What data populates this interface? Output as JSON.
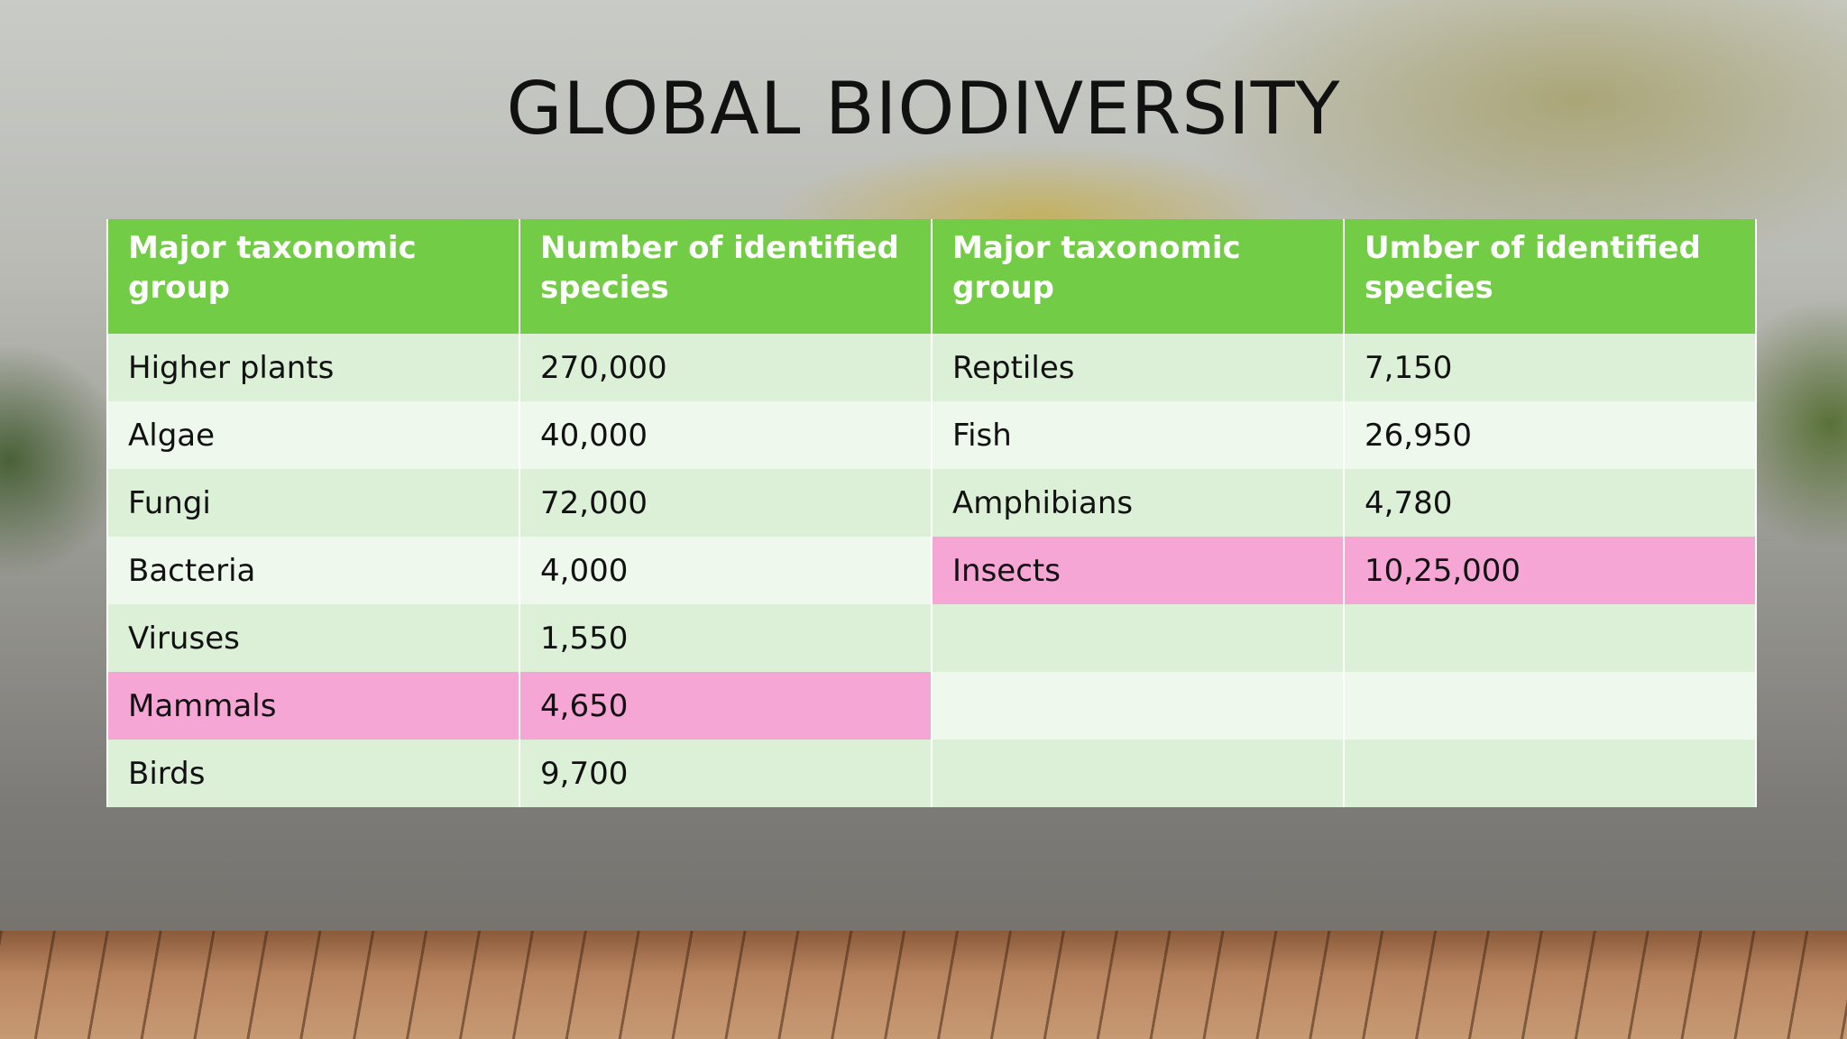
{
  "title": "GLOBAL BIODIVERSITY",
  "table": {
    "header": [
      "Major taxonomic group",
      "Number of identified species",
      "Major taxonomic group",
      "Umber of identified species"
    ],
    "rows": [
      [
        "Higher plants",
        "270,000",
        "Reptiles",
        "7,150"
      ],
      [
        "Algae",
        "40,000",
        "Fish",
        "26,950"
      ],
      [
        "Fungi",
        "72,000",
        "Amphibians",
        "4,780"
      ],
      [
        "Bacteria",
        "4,000",
        "Insects",
        "10,25,000"
      ],
      [
        "Viruses",
        "1,550"
      ],
      [
        "Mammals",
        "4,650"
      ],
      [
        "Birds",
        "9,700"
      ]
    ]
  }
}
